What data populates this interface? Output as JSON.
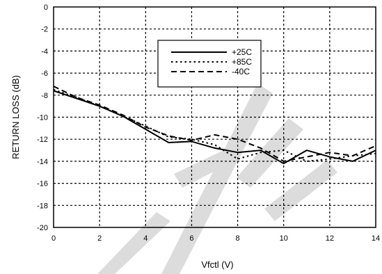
{
  "chart_data": {
    "type": "line",
    "title": "",
    "xlabel": "Vfctl (V)",
    "ylabel": "RETURN LOSS (dB)",
    "xlim": [
      0,
      14
    ],
    "ylim": [
      -20,
      0
    ],
    "xticks": [
      0,
      2,
      4,
      6,
      8,
      10,
      12,
      14
    ],
    "yticks": [
      0,
      -2,
      -4,
      -6,
      -8,
      -10,
      -12,
      -14,
      -16,
      -18,
      -20
    ],
    "grid": true,
    "legend_position": "top-center",
    "series": [
      {
        "name": "+25C",
        "style": "solid",
        "x": [
          0,
          1,
          2,
          3,
          4,
          5,
          6,
          7,
          8,
          9,
          10,
          11,
          12,
          13,
          14
        ],
        "y": [
          -7.6,
          -8.3,
          -9.0,
          -9.9,
          -11.1,
          -12.3,
          -12.2,
          -12.8,
          -13.2,
          -13.0,
          -14.2,
          -13.0,
          -13.6,
          -14.0,
          -13.0
        ]
      },
      {
        "name": "+85C",
        "style": "dotted",
        "x": [
          0,
          1,
          2,
          3,
          4,
          5,
          6,
          7,
          8,
          9,
          10,
          11,
          12,
          13,
          14
        ],
        "y": [
          -7.5,
          -8.2,
          -9.0,
          -9.9,
          -10.8,
          -11.8,
          -12.0,
          -12.5,
          -13.8,
          -13.2,
          -13.0,
          -14.0,
          -13.8,
          -13.5,
          -13.3
        ]
      },
      {
        "name": "-40C",
        "style": "dashed",
        "x": [
          0,
          1,
          2,
          3,
          4,
          5,
          6,
          7,
          8,
          9,
          10,
          11,
          12,
          13,
          14
        ],
        "y": [
          -7.2,
          -8.2,
          -8.9,
          -9.8,
          -10.9,
          -11.7,
          -12.1,
          -11.6,
          -12.0,
          -12.8,
          -14.0,
          -13.6,
          -13.2,
          -13.5,
          -12.6
        ]
      }
    ]
  },
  "colors": {
    "line": "#000000",
    "background": "#ffffff",
    "watermark": "#d9d9d9"
  }
}
